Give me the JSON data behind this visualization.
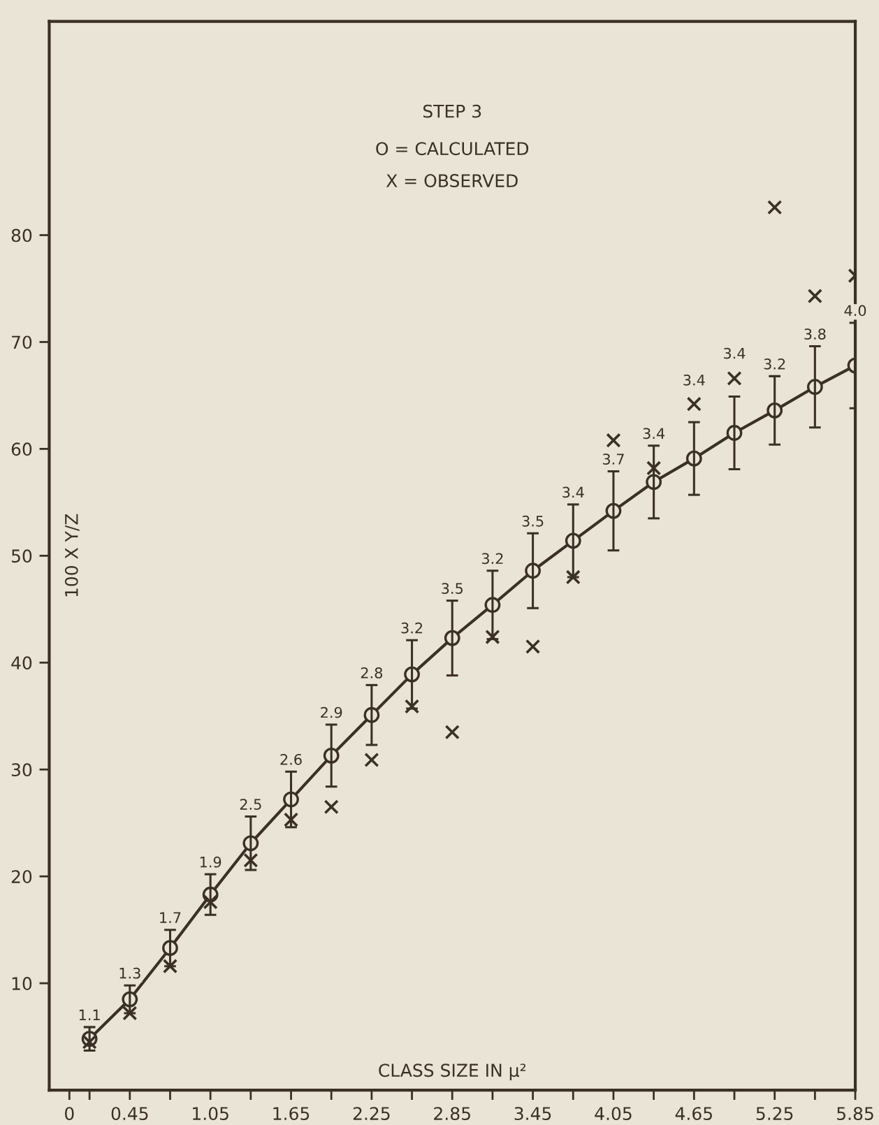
{
  "chart_data": {
    "type": "line",
    "title": "STEP 3",
    "xlabel": "CLASS SIZE IN μ²",
    "ylabel": "100 X Y/Z",
    "annotations": [
      "O = CALCULATED",
      "X = OBSERVED",
      {
        "text": "1.1",
        "x": 0.15,
        "y": 5.9
      },
      {
        "text": "1.3",
        "x": 0.45,
        "y": 9.8
      },
      {
        "text": "1.7",
        "x": 0.75,
        "y": 15.0
      },
      {
        "text": "1.9",
        "x": 1.05,
        "y": 20.2
      },
      {
        "text": "2.5",
        "x": 1.35,
        "y": 25.6
      },
      {
        "text": "2.6",
        "x": 1.65,
        "y": 29.8
      },
      {
        "text": "2.9",
        "x": 1.95,
        "y": 34.2
      },
      {
        "text": "2.8",
        "x": 2.25,
        "y": 37.9
      },
      {
        "text": "3.2",
        "x": 2.55,
        "y": 42.1
      },
      {
        "text": "3.5",
        "x": 2.85,
        "y": 45.8
      },
      {
        "text": "3.2",
        "x": 3.15,
        "y": 48.6
      },
      {
        "text": "3.5",
        "x": 3.45,
        "y": 52.1
      },
      {
        "text": "3.4",
        "x": 3.75,
        "y": 54.8
      },
      {
        "text": "3.7",
        "x": 4.05,
        "y": 57.9
      },
      {
        "text": "3.4",
        "x": 4.35,
        "y": 60.3
      },
      {
        "text": "3.4",
        "x": 4.65,
        "y": 65.3
      },
      {
        "text": "3.4",
        "x": 4.95,
        "y": 67.8
      },
      {
        "text": "3.2",
        "x": 5.25,
        "y": 66.8
      },
      {
        "text": "3.8",
        "x": 5.55,
        "y": 69.6
      },
      {
        "text": "4.0",
        "x": 5.85,
        "y": 71.8
      }
    ],
    "x": [
      0.15,
      0.45,
      0.75,
      1.05,
      1.35,
      1.65,
      1.95,
      2.25,
      2.55,
      2.85,
      3.15,
      3.45,
      3.75,
      4.05,
      4.35,
      4.65,
      4.95,
      5.25,
      5.55,
      5.85
    ],
    "series": [
      {
        "marker": "circle",
        "line_style": "solid",
        "color": "#3b3026",
        "values": [
          4.8,
          8.5,
          13.3,
          18.3,
          23.1,
          27.2,
          31.3,
          35.1,
          38.9,
          42.3,
          45.4,
          48.6,
          51.4,
          54.2,
          56.9,
          59.1,
          61.5,
          63.6,
          65.8,
          67.8
        ],
        "errors": [
          1.1,
          1.3,
          1.7,
          1.9,
          2.5,
          2.6,
          2.9,
          2.8,
          3.2,
          3.5,
          3.2,
          3.5,
          3.4,
          3.7,
          3.4,
          3.4,
          3.4,
          3.2,
          3.8,
          4.0
        ]
      },
      {
        "type": "scatter",
        "marker": "cross",
        "color": "#3b3026",
        "values": [
          4.5,
          7.2,
          11.6,
          17.6,
          21.5,
          25.3,
          26.5,
          30.9,
          35.9,
          33.5,
          42.4,
          41.5,
          48.0,
          60.8,
          58.2,
          64.2,
          66.6,
          82.6,
          74.3,
          76.2
        ]
      }
    ],
    "xlim": [
      -0.15,
      5.85
    ],
    "xticks": [
      0,
      {
        "value": 0.15,
        "label": null
      },
      0.45,
      {
        "value": 0.75,
        "label": null
      },
      1.05,
      {
        "value": 1.35,
        "label": null
      },
      1.65,
      {
        "value": 1.95,
        "label": null
      },
      2.25,
      {
        "value": 2.55,
        "label": null
      },
      2.85,
      {
        "value": 3.15,
        "label": null
      },
      3.45,
      {
        "value": 3.75,
        "label": null
      },
      4.05,
      {
        "value": 4.35,
        "label": null
      },
      4.65,
      {
        "value": 4.95,
        "label": null
      },
      5.25,
      {
        "value": 5.55,
        "label": null
      },
      5.85
    ],
    "ylim": [
      0,
      100
    ],
    "yticks": [
      10,
      20,
      30,
      40,
      50,
      60,
      70,
      80
    ],
    "grid": false,
    "legend": false
  }
}
